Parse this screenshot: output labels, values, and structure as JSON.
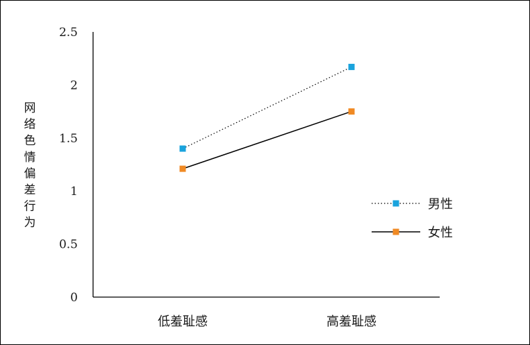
{
  "chart_data": {
    "type": "line",
    "title": "",
    "xlabel": "",
    "ylabel": "网络色情偏差行为",
    "categories": [
      "低羞耻感",
      "高羞耻感"
    ],
    "ylim": [
      0,
      2.5
    ],
    "yticks": [
      0,
      0.5,
      1,
      1.5,
      2,
      2.5
    ],
    "ytick_labels": [
      "0",
      "0.5",
      "1",
      "1.5",
      "2",
      "2.5"
    ],
    "grid": false,
    "legend_position": "right",
    "series": [
      {
        "name": "男性",
        "values": [
          1.4,
          2.17
        ],
        "color": "#1aa3dd",
        "line_style": "dotted",
        "marker": "square"
      },
      {
        "name": "女性",
        "values": [
          1.21,
          1.75
        ],
        "color": "#f08a24",
        "line_style": "solid",
        "marker": "square"
      }
    ]
  }
}
